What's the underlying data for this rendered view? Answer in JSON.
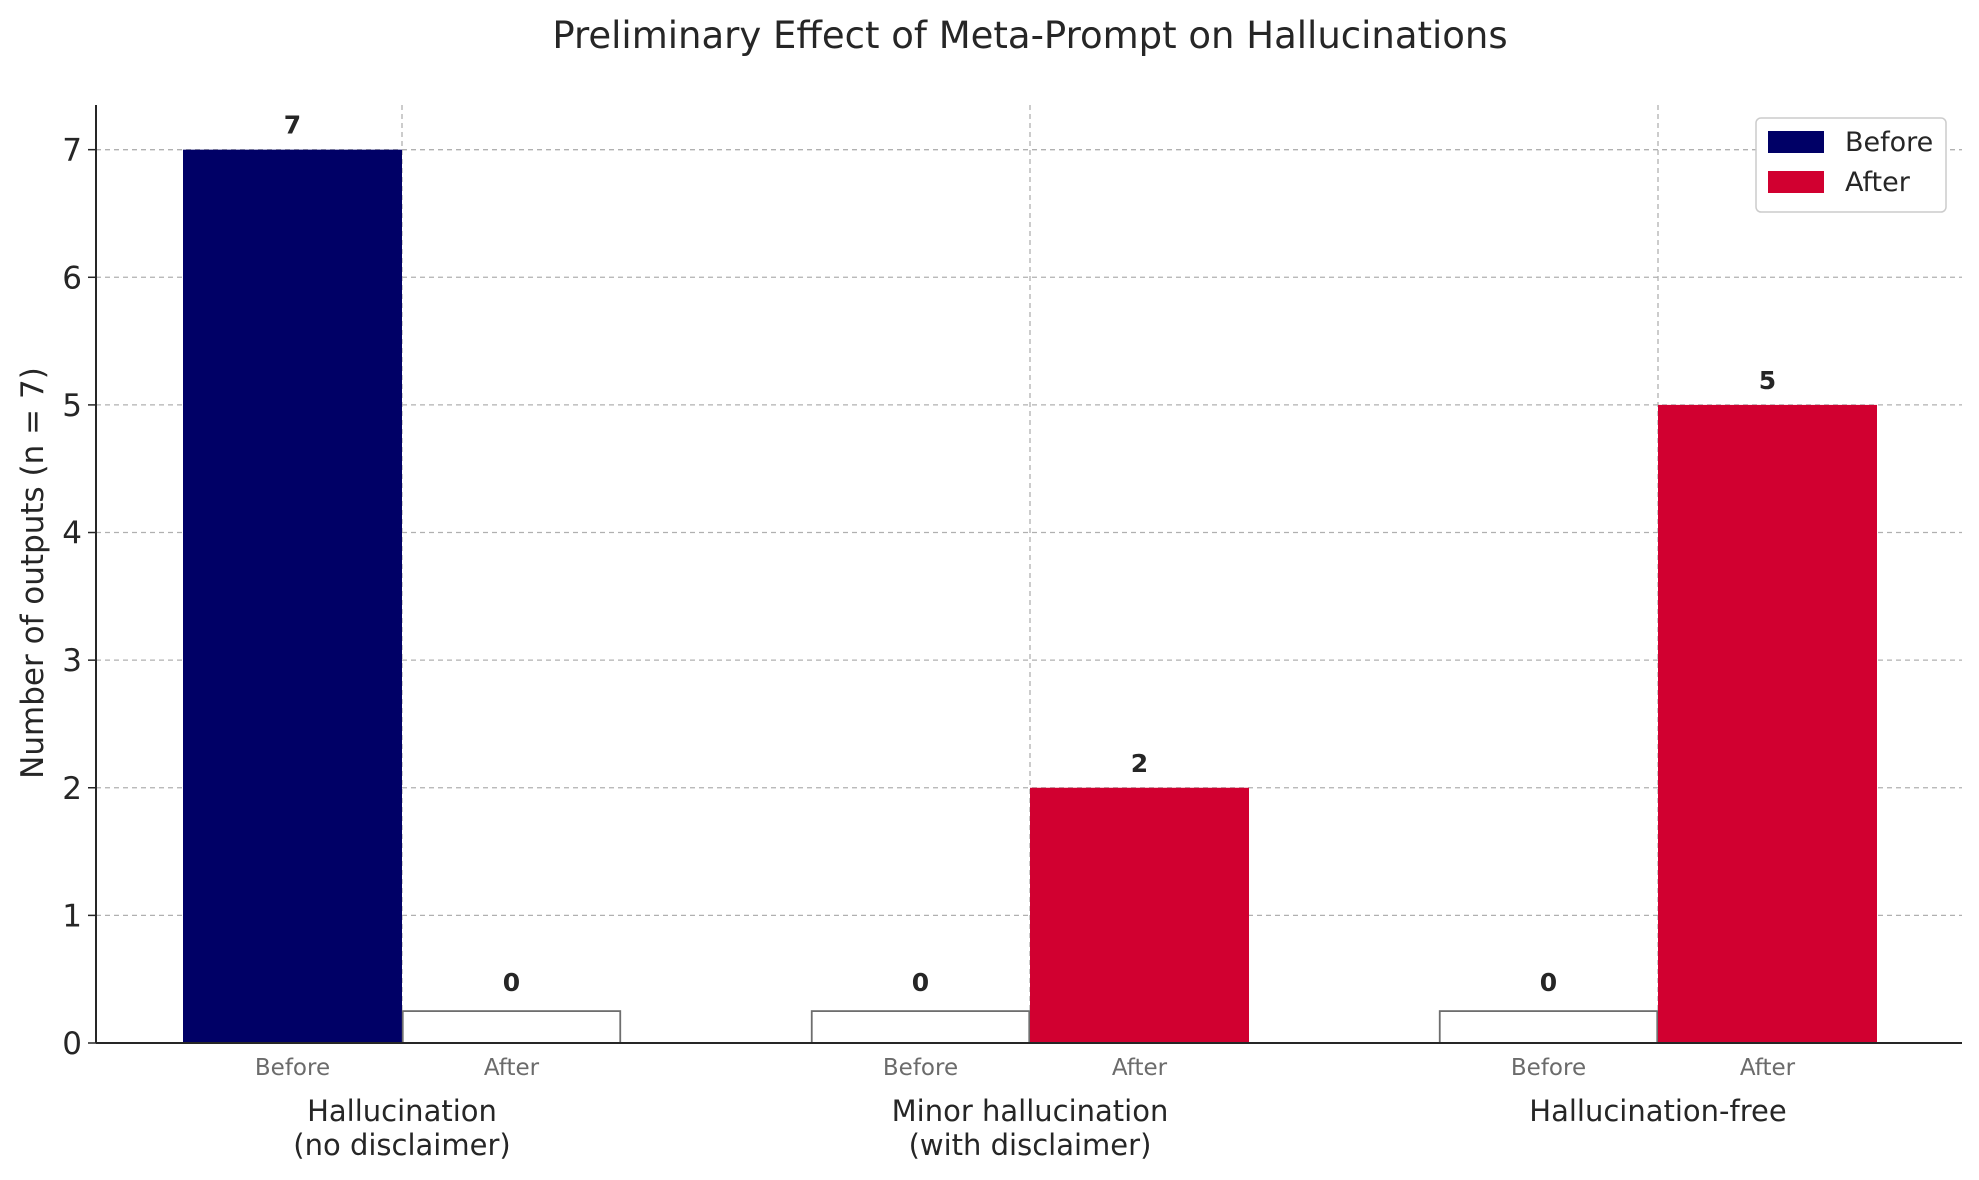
{
  "chart_data": {
    "type": "bar",
    "title": "Preliminary Effect of Meta-Prompt on Hallucinations",
    "ylabel": "Number of outputs (n = 7)",
    "ylim": [
      0,
      7.35
    ],
    "yticks": [
      0,
      1,
      2,
      3,
      4,
      5,
      6,
      7
    ],
    "grid": true,
    "legend_position": "top-right",
    "categories": [
      [
        "Hallucination",
        "(no disclaimer)"
      ],
      [
        "Minor hallucination",
        "(with disclaimer)"
      ],
      [
        "Hallucination-free"
      ]
    ],
    "bar_sublabels": [
      "Before",
      "After"
    ],
    "zero_bar_placeholder": 0.25,
    "series": [
      {
        "name": "Before",
        "color": "#000066",
        "values": [
          7,
          0,
          0
        ]
      },
      {
        "name": "After",
        "color": "#d10030",
        "values": [
          0,
          2,
          5
        ]
      }
    ]
  }
}
